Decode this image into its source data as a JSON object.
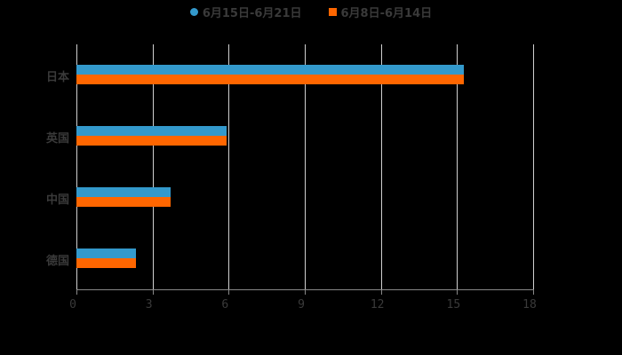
{
  "chart_data": {
    "type": "bar",
    "orientation": "horizontal",
    "title": "",
    "xlabel": "",
    "ylabel": "",
    "categories": [
      "日本",
      "英国",
      "中国",
      "德国"
    ],
    "series": [
      {
        "name": "6月15日-6月21日",
        "color": "#3399cc",
        "values": [
          15.27,
          5.92,
          3.71,
          2.35
        ]
      },
      {
        "name": "6月8日-6月14日",
        "color": "#ff6600",
        "values": [
          15.27,
          5.92,
          3.71,
          2.35
        ]
      }
    ],
    "xlim": [
      0,
      18
    ],
    "xticks": [
      "0",
      "3",
      "6",
      "9",
      "12",
      "15",
      "18"
    ],
    "grid": true,
    "legend_position": "top"
  },
  "legend": {
    "items": [
      {
        "label": "6月15日-6月21日",
        "color": "#3399cc",
        "marker": "circle"
      },
      {
        "label": "6月8日-6月14日",
        "color": "#ff6600",
        "marker": "square"
      }
    ]
  }
}
